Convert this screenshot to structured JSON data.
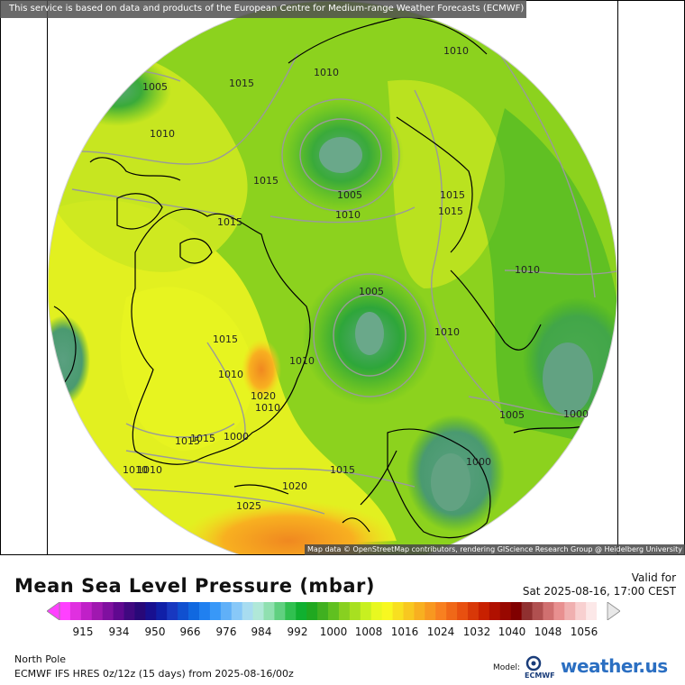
{
  "disclaimer": "This service is based on data and products of the European Centre for Medium-range Weather Forecasts (ECMWF)",
  "attribution": "Map data © OpenStreetMap contributors, rendering GIScience Research Group @ Heidelberg University",
  "title": "Mean Sea Level Pressure (mbar)",
  "valid_label": "Valid for",
  "valid_time": "Sat 2025-08-16, 17:00 CEST",
  "region": "North Pole",
  "model_run": "ECMWF IFS HRES 0z/12z (15 days) from  2025-08-16/00z",
  "model_label": "Model:",
  "ecmwf_logo_text": "ECMWF",
  "brand": "weather.us",
  "colorbar": {
    "labels": [
      "915",
      "934",
      "950",
      "966",
      "976",
      "984",
      "992",
      "1000",
      "1008",
      "1016",
      "1024",
      "1032",
      "1040",
      "1048",
      "1056"
    ],
    "colors": [
      "#ff40ff",
      "#e030e0",
      "#c020c8",
      "#a018b0",
      "#8010a0",
      "#600890",
      "#400880",
      "#280878",
      "#181090",
      "#1020a8",
      "#1838c0",
      "#1050d0",
      "#1068e0",
      "#2080f0",
      "#3898f8",
      "#60b0f8",
      "#88c8f8",
      "#a8dcf0",
      "#b0e8d8",
      "#90e0b0",
      "#60d080",
      "#30c050",
      "#10b030",
      "#20a820",
      "#40b020",
      "#60c020",
      "#88d020",
      "#a8e020",
      "#c8f020",
      "#e8f820",
      "#f8f820",
      "#f8e020",
      "#f8c820",
      "#f8b020",
      "#f89820",
      "#f88020",
      "#f06818",
      "#e85010",
      "#d83808",
      "#c82000",
      "#b01000",
      "#980800",
      "#800000",
      "#903030",
      "#b05050",
      "#d07070",
      "#e89090",
      "#f0b0b0",
      "#f8d0d0",
      "#fce8e8",
      "#ffffff"
    ]
  },
  "isobar_labels": [
    {
      "text": "1005"
    },
    {
      "text": "1015"
    },
    {
      "text": "1010"
    },
    {
      "text": "1010"
    },
    {
      "text": "1010"
    },
    {
      "text": "1015"
    },
    {
      "text": "1005"
    },
    {
      "text": "1010"
    },
    {
      "text": "1015"
    },
    {
      "text": "1015"
    },
    {
      "text": "1015"
    },
    {
      "text": "1010"
    },
    {
      "text": "1005"
    },
    {
      "text": "1010"
    },
    {
      "text": "1015"
    },
    {
      "text": "1010"
    },
    {
      "text": "1010"
    },
    {
      "text": "1020"
    },
    {
      "text": "1010"
    },
    {
      "text": "1000"
    },
    {
      "text": "1015"
    },
    {
      "text": "1015"
    },
    {
      "text": "1005"
    },
    {
      "text": "1000"
    },
    {
      "text": "1000"
    },
    {
      "text": "1010"
    },
    {
      "text": "1020"
    },
    {
      "text": "1025"
    },
    {
      "text": "1015"
    },
    {
      "text": "1010"
    }
  ]
}
